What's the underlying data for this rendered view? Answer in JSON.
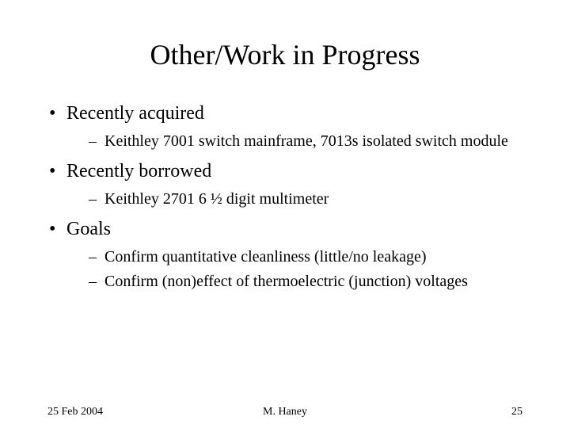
{
  "title": "Other/Work in Progress",
  "sections": [
    {
      "heading": "Recently acquired",
      "items": [
        "Keithley 7001 switch mainframe, 7013s isolated switch module"
      ]
    },
    {
      "heading": "Recently borrowed",
      "items": [
        "Keithley 2701 6 ½ digit multimeter"
      ]
    },
    {
      "heading": "Goals",
      "items": [
        "Confirm quantitative cleanliness (little/no leakage)",
        "Confirm (non)effect of thermoelectric (junction) voltages"
      ]
    }
  ],
  "footer": {
    "date": "25 Feb 2004",
    "author": "M. Haney",
    "page": "25"
  },
  "style": {
    "background_color": "#ffffff",
    "text_color": "#000000",
    "font_family": "Times New Roman",
    "title_fontsize": 36,
    "l1_fontsize": 24,
    "l2_fontsize": 20,
    "footer_fontsize": 14
  }
}
